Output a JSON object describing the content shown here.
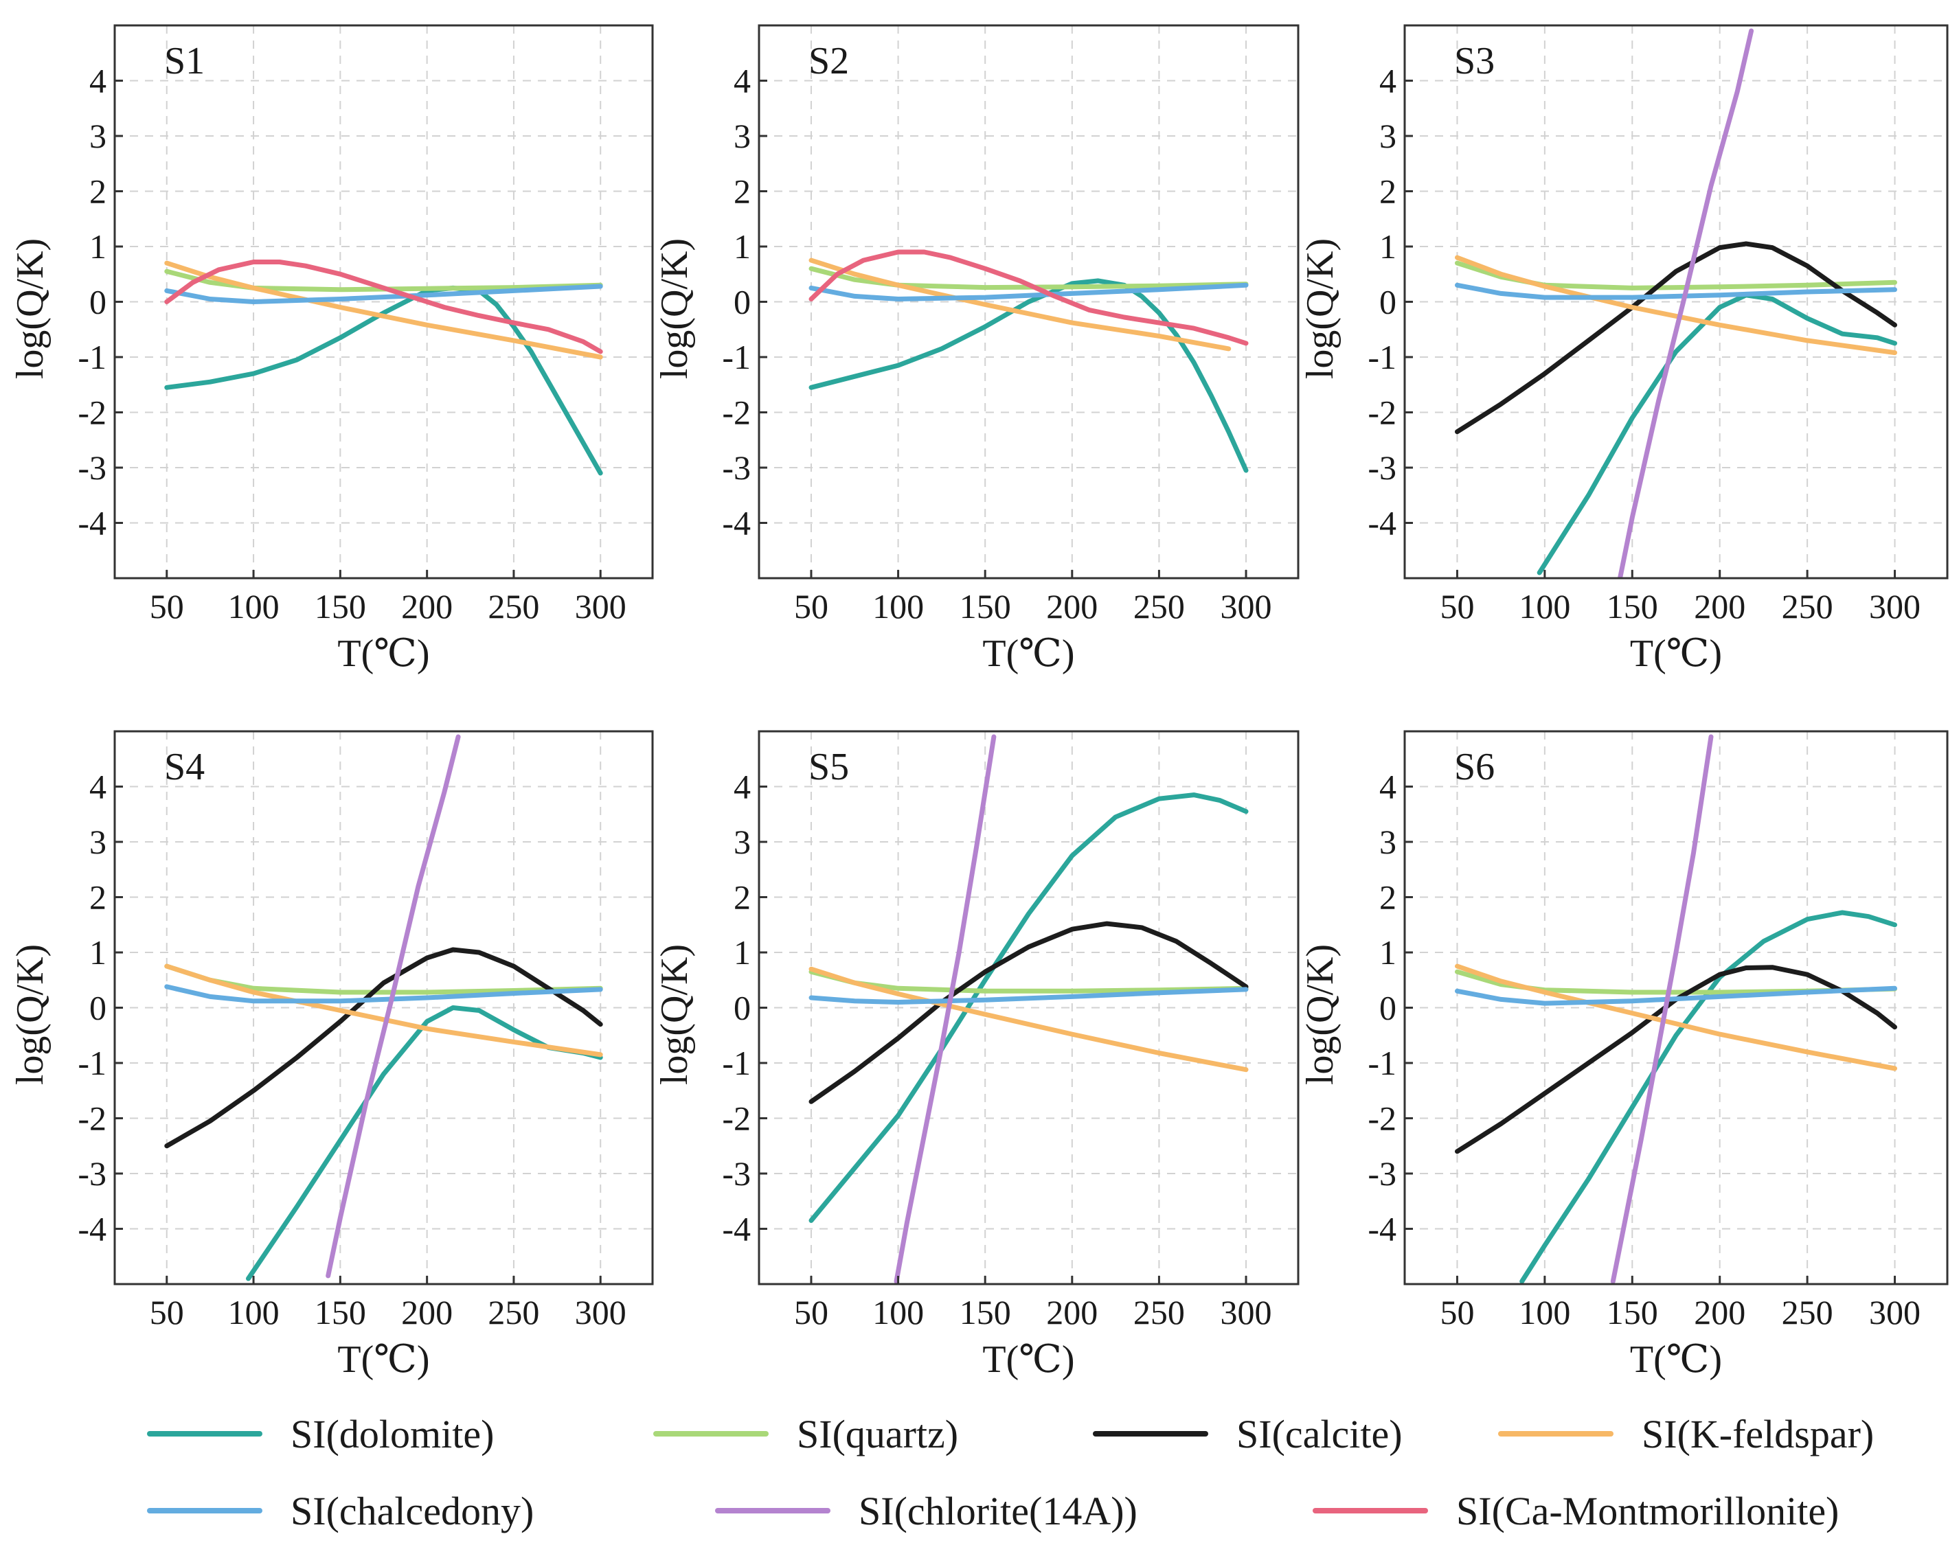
{
  "figure": {
    "series_styles": [
      {
        "key": "dolomite",
        "label": "SI(dolomite)",
        "color": "#2ba69b"
      },
      {
        "key": "quartz",
        "label": "SI(quartz)",
        "color": "#a9d878"
      },
      {
        "key": "calcite",
        "label": "SI(calcite)",
        "color": "#1c1c1c"
      },
      {
        "key": "kfeldspar",
        "label": "SI(K-feldspar)",
        "color": "#f7b866"
      },
      {
        "key": "chalcedony",
        "label": "SI(chalcedony)",
        "color": "#63ace0"
      },
      {
        "key": "chlorite",
        "label": "SI(chlorite(14A))",
        "color": "#b483cf"
      },
      {
        "key": "camont",
        "label": "SI(Ca-Montmorillonite)",
        "color": "#e8647e"
      }
    ]
  },
  "chart_data": [
    {
      "type": "line",
      "title": "S1",
      "xlabel": "T(℃)",
      "ylabel": "log(Q/K)",
      "xlim": [
        20,
        330
      ],
      "ylim": [
        -5,
        5
      ],
      "xticks": [
        50,
        100,
        150,
        200,
        250,
        300
      ],
      "yticks": [
        -4,
        -3,
        -2,
        -1,
        0,
        1,
        2,
        3,
        4
      ],
      "series": [
        {
          "key": "dolomite",
          "name": "SI(dolomite)",
          "x": [
            50,
            75,
            100,
            125,
            150,
            175,
            200,
            215,
            230,
            240,
            250,
            260,
            270,
            280,
            290,
            300
          ],
          "y": [
            -1.55,
            -1.45,
            -1.3,
            -1.05,
            -0.65,
            -0.2,
            0.2,
            0.25,
            0.2,
            -0.05,
            -0.45,
            -0.9,
            -1.45,
            -2.0,
            -2.55,
            -3.1
          ]
        },
        {
          "key": "quartz",
          "name": "SI(quartz)",
          "x": [
            50,
            75,
            100,
            150,
            200,
            250,
            300
          ],
          "y": [
            0.55,
            0.35,
            0.25,
            0.22,
            0.24,
            0.26,
            0.3
          ]
        },
        {
          "key": "kfeldspar",
          "name": "SI(K-feldspar)",
          "x": [
            50,
            75,
            100,
            150,
            200,
            250,
            300
          ],
          "y": [
            0.7,
            0.45,
            0.25,
            -0.1,
            -0.42,
            -0.7,
            -1.0
          ]
        },
        {
          "key": "chalcedony",
          "name": "SI(chalcedony)",
          "x": [
            50,
            75,
            100,
            150,
            200,
            250,
            300
          ],
          "y": [
            0.2,
            0.05,
            0.0,
            0.05,
            0.12,
            0.2,
            0.28
          ]
        },
        {
          "key": "camont",
          "name": "SI(Ca-Montmorillonite)",
          "x": [
            50,
            65,
            80,
            100,
            115,
            130,
            150,
            170,
            190,
            210,
            230,
            250,
            270,
            290,
            300
          ],
          "y": [
            0.0,
            0.35,
            0.58,
            0.72,
            0.72,
            0.65,
            0.5,
            0.3,
            0.1,
            -0.1,
            -0.25,
            -0.38,
            -0.5,
            -0.72,
            -0.9
          ]
        }
      ]
    },
    {
      "type": "line",
      "title": "S2",
      "xlabel": "T(℃)",
      "ylabel": "log(Q/K)",
      "xlim": [
        20,
        330
      ],
      "ylim": [
        -5,
        5
      ],
      "xticks": [
        50,
        100,
        150,
        200,
        250,
        300
      ],
      "yticks": [
        -4,
        -3,
        -2,
        -1,
        0,
        1,
        2,
        3,
        4
      ],
      "series": [
        {
          "key": "dolomite",
          "name": "SI(dolomite)",
          "x": [
            50,
            75,
            100,
            125,
            150,
            175,
            200,
            215,
            230,
            240,
            250,
            260,
            270,
            280,
            290,
            300
          ],
          "y": [
            -1.55,
            -1.35,
            -1.15,
            -0.85,
            -0.45,
            0.0,
            0.33,
            0.38,
            0.3,
            0.1,
            -0.2,
            -0.6,
            -1.1,
            -1.7,
            -2.35,
            -3.05
          ]
        },
        {
          "key": "quartz",
          "name": "SI(quartz)",
          "x": [
            50,
            75,
            100,
            150,
            200,
            250,
            300
          ],
          "y": [
            0.6,
            0.4,
            0.3,
            0.26,
            0.27,
            0.29,
            0.32
          ]
        },
        {
          "key": "kfeldspar",
          "name": "SI(K-feldspar)",
          "x": [
            50,
            75,
            100,
            150,
            200,
            250,
            290
          ],
          "y": [
            0.75,
            0.5,
            0.3,
            -0.05,
            -0.38,
            -0.62,
            -0.85
          ]
        },
        {
          "key": "chalcedony",
          "name": "SI(chalcedony)",
          "x": [
            50,
            75,
            100,
            150,
            200,
            250,
            300
          ],
          "y": [
            0.25,
            0.1,
            0.05,
            0.08,
            0.15,
            0.22,
            0.3
          ]
        },
        {
          "key": "camont",
          "name": "SI(Ca-Montmorillonite)",
          "x": [
            50,
            65,
            80,
            100,
            115,
            130,
            150,
            170,
            190,
            210,
            230,
            250,
            270,
            290,
            300
          ],
          "y": [
            0.05,
            0.5,
            0.75,
            0.9,
            0.9,
            0.8,
            0.6,
            0.38,
            0.1,
            -0.15,
            -0.28,
            -0.38,
            -0.48,
            -0.65,
            -0.75
          ]
        }
      ]
    },
    {
      "type": "line",
      "title": "S3",
      "xlabel": "T(℃)",
      "ylabel": "log(Q/K)",
      "xlim": [
        20,
        330
      ],
      "ylim": [
        -5,
        5
      ],
      "xticks": [
        50,
        100,
        150,
        200,
        250,
        300
      ],
      "yticks": [
        -4,
        -3,
        -2,
        -1,
        0,
        1,
        2,
        3,
        4
      ],
      "series": [
        {
          "key": "dolomite",
          "name": "SI(dolomite)",
          "x": [
            97,
            125,
            150,
            175,
            200,
            215,
            230,
            250,
            270,
            290,
            300
          ],
          "y": [
            -4.9,
            -3.5,
            -2.1,
            -0.9,
            -0.1,
            0.12,
            0.05,
            -0.3,
            -0.58,
            -0.65,
            -0.75
          ]
        },
        {
          "key": "quartz",
          "name": "SI(quartz)",
          "x": [
            50,
            75,
            100,
            150,
            200,
            250,
            300
          ],
          "y": [
            0.7,
            0.45,
            0.3,
            0.25,
            0.27,
            0.3,
            0.35
          ]
        },
        {
          "key": "calcite",
          "name": "SI(calcite)",
          "x": [
            50,
            75,
            100,
            125,
            150,
            175,
            200,
            215,
            230,
            250,
            270,
            290,
            300
          ],
          "y": [
            -2.35,
            -1.85,
            -1.3,
            -0.7,
            -0.1,
            0.55,
            0.98,
            1.05,
            0.98,
            0.65,
            0.2,
            -0.2,
            -0.42
          ]
        },
        {
          "key": "kfeldspar",
          "name": "SI(K-feldspar)",
          "x": [
            50,
            75,
            100,
            150,
            200,
            250,
            300
          ],
          "y": [
            0.8,
            0.5,
            0.28,
            -0.1,
            -0.42,
            -0.7,
            -0.92
          ]
        },
        {
          "key": "chalcedony",
          "name": "SI(chalcedony)",
          "x": [
            50,
            75,
            100,
            150,
            200,
            250,
            300
          ],
          "y": [
            0.3,
            0.15,
            0.08,
            0.08,
            0.12,
            0.18,
            0.22
          ]
        },
        {
          "key": "chlorite",
          "name": "SI(chlorite(14A))",
          "x": [
            143,
            150,
            165,
            180,
            195,
            210,
            218
          ],
          "y": [
            -5.0,
            -3.9,
            -1.8,
            0.1,
            2.1,
            3.8,
            4.9
          ]
        }
      ]
    },
    {
      "type": "line",
      "title": "S4",
      "xlabel": "T(℃)",
      "ylabel": "log(Q/K)",
      "xlim": [
        20,
        330
      ],
      "ylim": [
        -5,
        5
      ],
      "xticks": [
        50,
        100,
        150,
        200,
        250,
        300
      ],
      "yticks": [
        -4,
        -3,
        -2,
        -1,
        0,
        1,
        2,
        3,
        4
      ],
      "series": [
        {
          "key": "dolomite",
          "name": "SI(dolomite)",
          "x": [
            97,
            125,
            150,
            175,
            200,
            215,
            230,
            250,
            270,
            290,
            300
          ],
          "y": [
            -4.9,
            -3.6,
            -2.4,
            -1.2,
            -0.25,
            0.0,
            -0.05,
            -0.4,
            -0.72,
            -0.82,
            -0.9
          ]
        },
        {
          "key": "quartz",
          "name": "SI(quartz)",
          "x": [
            50,
            75,
            100,
            150,
            200,
            250,
            300
          ],
          "y": [
            0.75,
            0.5,
            0.35,
            0.28,
            0.28,
            0.31,
            0.35
          ]
        },
        {
          "key": "calcite",
          "name": "SI(calcite)",
          "x": [
            50,
            75,
            100,
            125,
            150,
            175,
            200,
            215,
            230,
            250,
            270,
            290,
            300
          ],
          "y": [
            -2.5,
            -2.05,
            -1.5,
            -0.9,
            -0.25,
            0.45,
            0.9,
            1.05,
            1.0,
            0.75,
            0.35,
            -0.05,
            -0.3
          ]
        },
        {
          "key": "kfeldspar",
          "name": "SI(K-feldspar)",
          "x": [
            50,
            75,
            100,
            150,
            200,
            250,
            300
          ],
          "y": [
            0.75,
            0.5,
            0.28,
            -0.05,
            -0.38,
            -0.62,
            -0.85
          ]
        },
        {
          "key": "chalcedony",
          "name": "SI(chalcedony)",
          "x": [
            50,
            75,
            100,
            150,
            200,
            250,
            300
          ],
          "y": [
            0.38,
            0.2,
            0.12,
            0.12,
            0.18,
            0.26,
            0.33
          ]
        },
        {
          "key": "chlorite",
          "name": "SI(chlorite(14A))",
          "x": [
            143,
            150,
            165,
            180,
            195,
            210,
            218
          ],
          "y": [
            -4.85,
            -3.8,
            -1.7,
            0.2,
            2.2,
            3.9,
            4.9
          ]
        }
      ]
    },
    {
      "type": "line",
      "title": "S5",
      "xlabel": "T(℃)",
      "ylabel": "log(Q/K)",
      "xlim": [
        20,
        330
      ],
      "ylim": [
        -5,
        5
      ],
      "xticks": [
        50,
        100,
        150,
        200,
        250,
        300
      ],
      "yticks": [
        -4,
        -3,
        -2,
        -1,
        0,
        1,
        2,
        3,
        4
      ],
      "series": [
        {
          "key": "dolomite",
          "name": "SI(dolomite)",
          "x": [
            50,
            75,
            100,
            125,
            150,
            175,
            200,
            225,
            250,
            270,
            285,
            300
          ],
          "y": [
            -3.85,
            -2.9,
            -1.95,
            -0.75,
            0.5,
            1.7,
            2.75,
            3.45,
            3.78,
            3.85,
            3.75,
            3.55
          ]
        },
        {
          "key": "quartz",
          "name": "SI(quartz)",
          "x": [
            50,
            75,
            100,
            150,
            200,
            250,
            300
          ],
          "y": [
            0.65,
            0.45,
            0.35,
            0.3,
            0.3,
            0.32,
            0.35
          ]
        },
        {
          "key": "calcite",
          "name": "SI(calcite)",
          "x": [
            50,
            75,
            100,
            125,
            150,
            175,
            200,
            220,
            240,
            260,
            280,
            300
          ],
          "y": [
            -1.7,
            -1.15,
            -0.55,
            0.1,
            0.65,
            1.1,
            1.42,
            1.52,
            1.45,
            1.2,
            0.8,
            0.38
          ]
        },
        {
          "key": "kfeldspar",
          "name": "SI(K-feldspar)",
          "x": [
            50,
            75,
            100,
            150,
            200,
            250,
            300
          ],
          "y": [
            0.7,
            0.45,
            0.25,
            -0.12,
            -0.48,
            -0.82,
            -1.12
          ]
        },
        {
          "key": "chalcedony",
          "name": "SI(chalcedony)",
          "x": [
            50,
            75,
            100,
            150,
            200,
            250,
            300
          ],
          "y": [
            0.18,
            0.12,
            0.1,
            0.14,
            0.2,
            0.27,
            0.33
          ]
        },
        {
          "key": "chlorite",
          "name": "SI(chlorite(14A))",
          "x": [
            99,
            105,
            115,
            125,
            135,
            145,
            155
          ],
          "y": [
            -4.95,
            -3.9,
            -2.3,
            -0.7,
            1.0,
            2.9,
            4.9
          ]
        }
      ]
    },
    {
      "type": "line",
      "title": "S6",
      "xlabel": "T(℃)",
      "ylabel": "log(Q/K)",
      "xlim": [
        20,
        330
      ],
      "ylim": [
        -5,
        5
      ],
      "xticks": [
        50,
        100,
        150,
        200,
        250,
        300
      ],
      "yticks": [
        -4,
        -3,
        -2,
        -1,
        0,
        1,
        2,
        3,
        4
      ],
      "series": [
        {
          "key": "dolomite",
          "name": "SI(dolomite)",
          "x": [
            87,
            100,
            125,
            150,
            175,
            200,
            225,
            250,
            270,
            285,
            300
          ],
          "y": [
            -4.95,
            -4.3,
            -3.1,
            -1.8,
            -0.5,
            0.55,
            1.2,
            1.6,
            1.72,
            1.65,
            1.5
          ]
        },
        {
          "key": "quartz",
          "name": "SI(quartz)",
          "x": [
            50,
            75,
            100,
            150,
            200,
            250,
            300
          ],
          "y": [
            0.65,
            0.42,
            0.32,
            0.28,
            0.28,
            0.3,
            0.34
          ]
        },
        {
          "key": "calcite",
          "name": "SI(calcite)",
          "x": [
            50,
            75,
            100,
            125,
            150,
            175,
            200,
            215,
            230,
            250,
            270,
            290,
            300
          ],
          "y": [
            -2.6,
            -2.1,
            -1.55,
            -1.0,
            -0.45,
            0.15,
            0.6,
            0.72,
            0.73,
            0.6,
            0.3,
            -0.1,
            -0.35
          ]
        },
        {
          "key": "kfeldspar",
          "name": "SI(K-feldspar)",
          "x": [
            50,
            75,
            100,
            150,
            200,
            250,
            300
          ],
          "y": [
            0.75,
            0.48,
            0.28,
            -0.1,
            -0.48,
            -0.8,
            -1.1
          ]
        },
        {
          "key": "chalcedony",
          "name": "SI(chalcedony)",
          "x": [
            50,
            75,
            100,
            150,
            200,
            250,
            300
          ],
          "y": [
            0.3,
            0.15,
            0.08,
            0.12,
            0.2,
            0.28,
            0.35
          ]
        },
        {
          "key": "chlorite",
          "name": "SI(chlorite(14A))",
          "x": [
            139,
            145,
            155,
            165,
            175,
            185,
            195
          ],
          "y": [
            -4.95,
            -4.0,
            -2.4,
            -0.7,
            1.0,
            2.8,
            4.9
          ]
        }
      ]
    }
  ]
}
